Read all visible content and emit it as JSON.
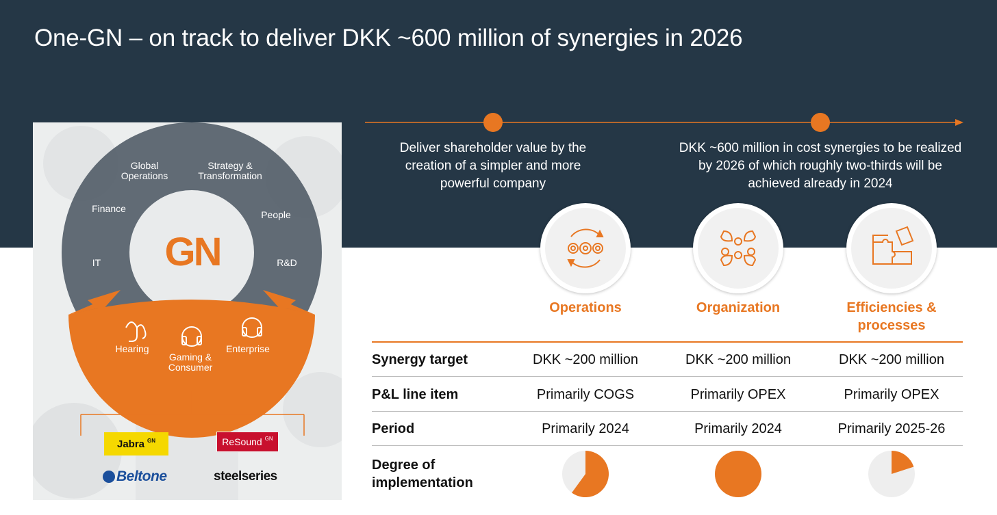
{
  "title": "One-GN – on track to deliver DKK ~600 million of synergies in 2026",
  "wheel": {
    "logo": "GN",
    "functions": [
      "Global Operations",
      "Strategy & Transformation",
      "Finance",
      "People",
      "IT",
      "R&D"
    ],
    "segments": [
      "Hearing",
      "Gaming & Consumer",
      "Enterprise"
    ],
    "brands": {
      "jabra": "Jabra",
      "jabra_suffix": "GN",
      "resound": "ReSound",
      "resound_suffix": "GN",
      "beltone": "Beltone",
      "steelseries": "steelseries"
    },
    "colors": {
      "gray": "#555f6a",
      "orange": "#e87722"
    }
  },
  "timeline": {
    "goals": [
      "Deliver shareholder value by the creation of a simpler and more powerful company",
      "DKK ~600 million in cost synergies to be realized by 2026 of which roughly two-thirds will be achieved already in 2024"
    ]
  },
  "categories": [
    {
      "name": "Operations",
      "icon": "gears-cycle-icon"
    },
    {
      "name": "Organization",
      "icon": "people-network-icon"
    },
    {
      "name": "Efficiencies & processes",
      "icon": "puzzle-icon"
    }
  ],
  "table": {
    "row_labels": {
      "synergy_target": "Synergy target",
      "pl_line_item": "P&L line item",
      "period": "Period",
      "degree": "Degree of implementation"
    },
    "synergy_target": [
      "DKK ~200 million",
      "DKK ~200 million",
      "DKK ~200 million"
    ],
    "pl_line_item": [
      "Primarily COGS",
      "Primarily OPEX",
      "Primarily OPEX"
    ],
    "period": [
      "Primarily 2024",
      "Primarily 2024",
      "Primarily 2025-26"
    ],
    "degree_of_implementation": [
      0.6,
      1.0,
      0.2
    ]
  },
  "colors": {
    "navy": "#253746",
    "orange": "#e87722",
    "pie_bg": "#eeeeee"
  }
}
